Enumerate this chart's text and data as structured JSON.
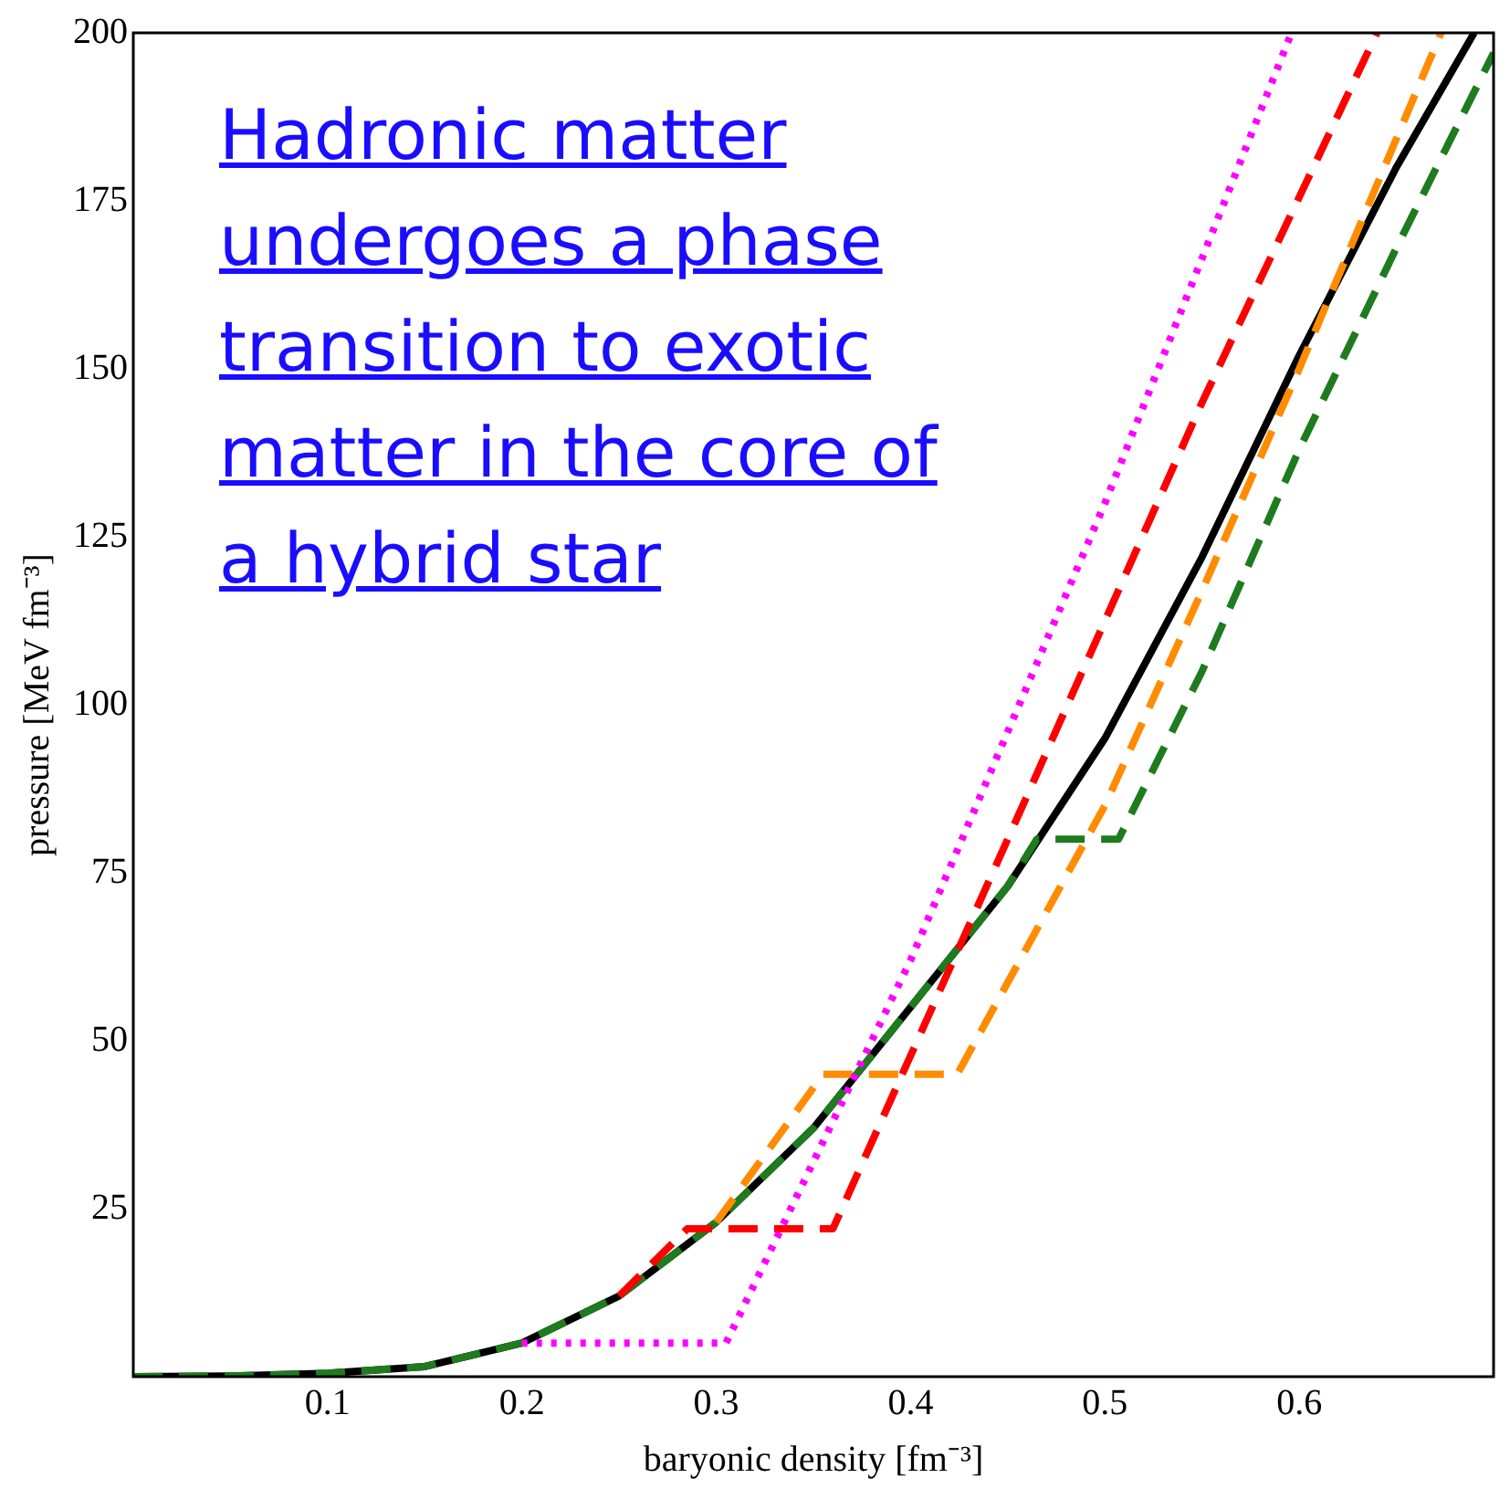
{
  "chart_data": {
    "type": "line",
    "xlabel": "baryonic density [fm⁻³]",
    "ylabel": "pressure [MeV fm⁻³]",
    "annotations": [
      "Hadronic matter undergoes a phase transition to exotic matter in the core of a hybrid star"
    ],
    "xlim": [
      0,
      0.7
    ],
    "xticks": [
      0.1,
      0.2,
      0.3,
      0.4,
      0.5,
      0.6
    ],
    "ylim": [
      0,
      200
    ],
    "yticks": [
      25,
      50,
      75,
      100,
      125,
      150,
      175,
      200
    ],
    "grid": false,
    "legend": false,
    "marker": "none",
    "series": [
      {
        "color": "#000000",
        "line_style": "solid",
        "x": [
          0,
          0.05,
          0.1,
          0.15,
          0.2,
          0.25,
          0.3,
          0.35,
          0.4,
          0.45,
          0.5,
          0.55,
          0.6,
          0.65,
          0.69
        ],
        "values": [
          0,
          0.1,
          0.5,
          1.5,
          5,
          12,
          23,
          37,
          55,
          73,
          95,
          122,
          152,
          180,
          200
        ]
      },
      {
        "color": "#1e7b1e",
        "line_style": "dashed",
        "x": [
          0,
          0.05,
          0.1,
          0.15,
          0.2,
          0.25,
          0.3,
          0.35,
          0.4,
          0.45,
          0.465,
          0.507,
          0.55,
          0.6,
          0.65,
          0.7
        ],
        "values": [
          0,
          0.1,
          0.5,
          1.5,
          5,
          12,
          23,
          37,
          55,
          73,
          80,
          80,
          105,
          138,
          168,
          197
        ]
      },
      {
        "color": "#ff8c00",
        "line_style": "dashed",
        "x": [
          0.3,
          0.355,
          0.424,
          0.5,
          0.55,
          0.6,
          0.673
        ],
        "values": [
          23,
          45,
          45,
          85,
          117,
          150,
          200
        ]
      },
      {
        "color": "#ff0000",
        "line_style": "dashed",
        "x": [
          0.25,
          0.285,
          0.36,
          0.45,
          0.55,
          0.64
        ],
        "values": [
          12,
          22,
          22,
          80,
          145,
          200
        ]
      },
      {
        "color": "#ff00ff",
        "line_style": "dotted",
        "x": [
          0.2,
          0.305,
          0.4,
          0.5,
          0.596
        ],
        "values": [
          5,
          5,
          62,
          130,
          200
        ]
      }
    ]
  }
}
